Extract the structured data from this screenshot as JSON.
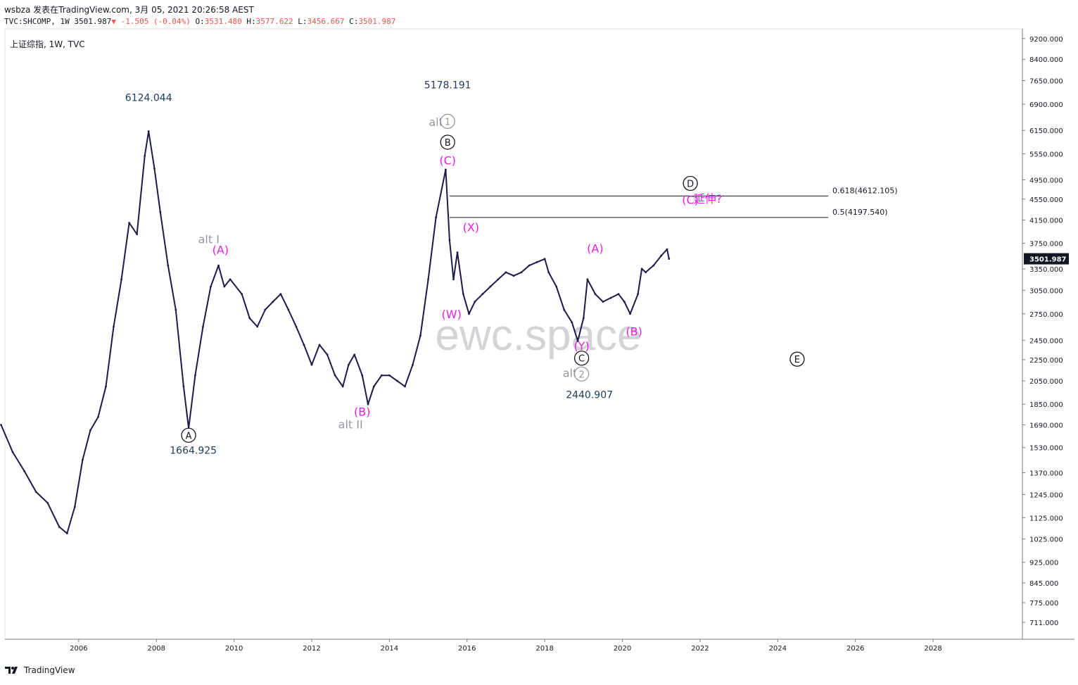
{
  "header": {
    "line1": "wsbza 发表在TradingView.com, 3月 05, 2021 20:26:58 AEST",
    "symbol": "TVC:SHCOMP, 1W",
    "last": "3501.987",
    "change": "-1.505 (-0.04%)",
    "open_label": "O:",
    "open": "3531.480",
    "high_label": "H:",
    "high": "3577.622",
    "low_label": "L:",
    "low": "3456.667",
    "close_label": "C:",
    "close": "3501.987",
    "chart_title": "上证综指, 1W, TVC"
  },
  "footer": {
    "brand": "TradingView"
  },
  "watermark": "ewc.space",
  "colors": {
    "candles": "#1c1a4a",
    "magenta": "#e91ee3",
    "gray": "#9598a1",
    "navy": "#1f3a5a",
    "price_tag": "#131722"
  },
  "chart_data": {
    "type": "line",
    "title": "上证综指, 1W, TVC",
    "y_scale": "log",
    "ylim": [
      660,
      9600
    ],
    "xlim": [
      2004.1,
      2030.3
    ],
    "grid": false,
    "legend": "none",
    "y_ticks": [
      "9200.000",
      "8400.000",
      "7650.000",
      "6900.000",
      "6150.000",
      "5550.000",
      "4950.000",
      "4550.000",
      "4150.000",
      "3750.000",
      "3350.000",
      "3050.000",
      "2750.000",
      "2450.000",
      "2250.000",
      "2050.000",
      "1850.000",
      "1690.000",
      "1530.000",
      "1370.000",
      "1245.000",
      "1125.000",
      "1025.000",
      "925.000",
      "845.000",
      "775.000",
      "711.000"
    ],
    "y_tick_values": [
      9200,
      8400,
      7650,
      6900,
      6150,
      5550,
      4950,
      4550,
      4150,
      3750,
      3350,
      3050,
      2750,
      2450,
      2250,
      2050,
      1850,
      1690,
      1530,
      1370,
      1245,
      1125,
      1025,
      925,
      845,
      775,
      711
    ],
    "x_ticks": [
      "2006",
      "2008",
      "2010",
      "2012",
      "2014",
      "2016",
      "2018",
      "2020",
      "2022",
      "2024",
      "2026",
      "2028"
    ],
    "x_tick_values": [
      2006,
      2008,
      2010,
      2012,
      2014,
      2016,
      2018,
      2020,
      2022,
      2024,
      2026,
      2028
    ],
    "last_price_label": "3501.987",
    "series": [
      {
        "x": [
          2004.0,
          2004.3,
          2004.6,
          2004.9,
          2005.2,
          2005.5,
          2005.7,
          2005.9,
          2006.1,
          2006.3,
          2006.5,
          2006.7,
          2006.9,
          2007.1,
          2007.3,
          2007.5,
          2007.7,
          2007.8,
          2007.95,
          2008.1,
          2008.3,
          2008.5,
          2008.7,
          2008.83,
          2009.0,
          2009.2,
          2009.4,
          2009.6,
          2009.75,
          2009.9,
          2010.2,
          2010.4,
          2010.6,
          2010.8,
          2011.0,
          2011.2,
          2011.4,
          2011.6,
          2011.8,
          2012.0,
          2012.2,
          2012.4,
          2012.6,
          2012.8,
          2012.95,
          2013.1,
          2013.3,
          2013.45,
          2013.6,
          2013.8,
          2014.0,
          2014.2,
          2014.4,
          2014.6,
          2014.8,
          2015.0,
          2015.2,
          2015.45,
          2015.55,
          2015.65,
          2015.75,
          2015.9,
          2016.05,
          2016.2,
          2016.4,
          2016.6,
          2016.8,
          2017.0,
          2017.2,
          2017.4,
          2017.6,
          2017.8,
          2018.0,
          2018.1,
          2018.3,
          2018.5,
          2018.7,
          2018.85,
          2019.0,
          2019.1,
          2019.3,
          2019.5,
          2019.7,
          2019.9,
          2020.05,
          2020.2,
          2020.4,
          2020.5,
          2020.6,
          2020.8,
          2021.0,
          2021.15,
          2021.2
        ],
        "y": [
          1690,
          1500,
          1380,
          1260,
          1200,
          1080,
          1050,
          1180,
          1450,
          1650,
          1750,
          2000,
          2600,
          3200,
          4100,
          3900,
          5500,
          6124,
          5200,
          4300,
          3400,
          2800,
          2000,
          1665,
          2100,
          2600,
          3100,
          3400,
          3100,
          3200,
          3000,
          2700,
          2600,
          2800,
          2900,
          3000,
          2800,
          2600,
          2400,
          2200,
          2400,
          2300,
          2100,
          2000,
          2200,
          2300,
          2100,
          1850,
          2000,
          2100,
          2100,
          2050,
          2000,
          2200,
          2500,
          3200,
          4200,
          5178,
          3800,
          3200,
          3600,
          3000,
          2750,
          2900,
          3000,
          3100,
          3200,
          3300,
          3250,
          3300,
          3400,
          3450,
          3500,
          3300,
          3100,
          2800,
          2650,
          2441,
          2700,
          3200,
          3000,
          2900,
          2950,
          3000,
          2900,
          2750,
          3000,
          3350,
          3300,
          3400,
          3550,
          3650,
          3502
        ]
      }
    ],
    "annotations": [
      {
        "text": "6124.044",
        "x": 2007.8,
        "y": 7000,
        "color": "#1f3a5a"
      },
      {
        "text": "1664.925",
        "x": 2008.95,
        "y": 1490,
        "color": "#1f3a5a"
      },
      {
        "text": "A",
        "x": 2008.83,
        "y": 1590,
        "circled": true,
        "color": "#131722"
      },
      {
        "text": "alt I",
        "x": 2009.35,
        "y": 3750,
        "color": "#9598a1"
      },
      {
        "text": "(A)",
        "x": 2009.65,
        "y": 3580,
        "color": "#e91ee3"
      },
      {
        "text": "(B)",
        "x": 2013.3,
        "y": 1760,
        "color": "#e91ee3"
      },
      {
        "text": "alt II",
        "x": 2013.0,
        "y": 1665,
        "color": "#9598a1"
      },
      {
        "text": "5178.191",
        "x": 2015.5,
        "y": 7400,
        "color": "#1f3a5a"
      },
      {
        "text": "alt",
        "x": 2015.2,
        "y": 6270,
        "color": "#9598a1"
      },
      {
        "text": "1",
        "x": 2015.5,
        "y": 6300,
        "circled": true,
        "color": "#9598a1"
      },
      {
        "text": "B",
        "x": 2015.5,
        "y": 5750,
        "circled": true,
        "color": "#131722"
      },
      {
        "text": "(C)",
        "x": 2015.5,
        "y": 5300,
        "color": "#e91ee3"
      },
      {
        "text": "(X)",
        "x": 2016.1,
        "y": 3950,
        "color": "#e91ee3"
      },
      {
        "text": "(W)",
        "x": 2015.6,
        "y": 2700,
        "color": "#e91ee3"
      },
      {
        "text": "(A)",
        "x": 2019.3,
        "y": 3600,
        "color": "#e91ee3"
      },
      {
        "text": "(B)",
        "x": 2020.3,
        "y": 2500,
        "color": "#e91ee3"
      },
      {
        "text": "(Y)",
        "x": 2018.95,
        "y": 2350,
        "color": "#e91ee3"
      },
      {
        "text": "C",
        "x": 2018.95,
        "y": 2230,
        "circled": true,
        "color": "#131722"
      },
      {
        "text": "alt",
        "x": 2018.65,
        "y": 2085,
        "color": "#9598a1"
      },
      {
        "text": "2",
        "x": 2018.95,
        "y": 2080,
        "circled": true,
        "color": "#9598a1"
      },
      {
        "text": "2440.907",
        "x": 2019.15,
        "y": 1900,
        "color": "#1f3a5a"
      },
      {
        "text": "D",
        "x": 2021.75,
        "y": 4800,
        "circled": true,
        "color": "#131722"
      },
      {
        "text": "(C)",
        "x": 2021.75,
        "y": 4460,
        "color": "#e91ee3"
      },
      {
        "text": "延伸?",
        "x": 2022.2,
        "y": 4480,
        "color": "#e91ee3"
      },
      {
        "text": "E",
        "x": 2024.5,
        "y": 2220,
        "circled": true,
        "color": "#131722"
      }
    ],
    "fib_levels": [
      {
        "label": "0.618(4612.105)",
        "value": 4612.105
      },
      {
        "label": "0.5(4197.540)",
        "value": 4197.54
      }
    ]
  }
}
